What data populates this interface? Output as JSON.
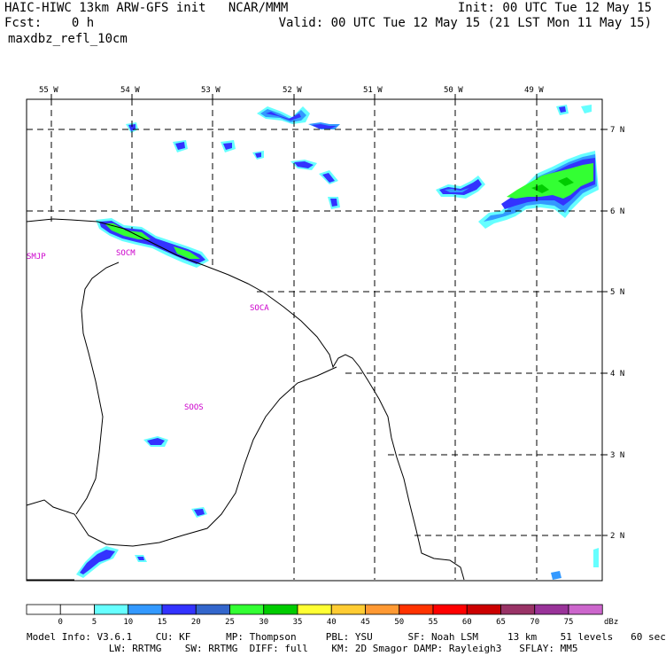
{
  "header": {
    "title": "HAIC-HIWC 13km ARW-GFS init   NCAR/MMM",
    "init": "Init: 00 UTC Tue 12 May 15",
    "fcst": "Fcst:    0 h",
    "valid": "Valid: 00 UTC Tue 12 May 15 (21 LST Mon 11 May 15)",
    "field": "maxdbz_refl_10cm"
  },
  "map": {
    "lon_labels": [
      "55 W",
      "54 W",
      "53 W",
      "52 W",
      "51 W",
      "50 W",
      "49 W"
    ],
    "lat_labels": [
      "7 N",
      "6 N",
      "5 N",
      "4 N",
      "3 N",
      "2 N"
    ],
    "stations": [
      "SMJP",
      "SOCM",
      "SOCA",
      "SOOS"
    ],
    "station_color": "#cc00cc",
    "grid_style": "dashed"
  },
  "colorbar": {
    "ticks": [
      "0",
      "5",
      "10",
      "15",
      "20",
      "25",
      "30",
      "35",
      "40",
      "45",
      "50",
      "55",
      "60",
      "65",
      "70",
      "75"
    ],
    "unit": "dBz",
    "colors": [
      "#ffffff",
      "#ffffff",
      "#66ffff",
      "#3399ff",
      "#3333ff",
      "#3366cc",
      "#33ff33",
      "#00cc00",
      "#ffff33",
      "#ffcc33",
      "#ff9933",
      "#ff3300",
      "#ff0000",
      "#cc0000",
      "#993366",
      "#993399",
      "#cc66cc"
    ]
  },
  "footer": {
    "line1": "Model Info: V3.6.1    CU: KF      MP: Thompson     PBL: YSU      SF: Noah LSM     13 km    51 levels   60 sec",
    "line2": "              LW: RRTMG    SW: RRTMG  DIFF: full    KM: 2D Smagor DAMP: Rayleigh3   SFLAY: MM5"
  }
}
